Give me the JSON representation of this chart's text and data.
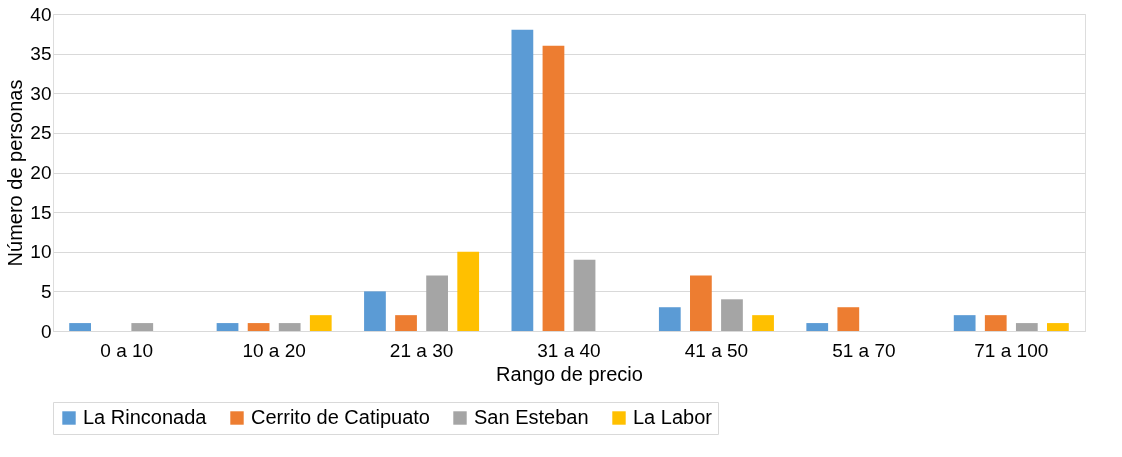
{
  "chart_data": {
    "type": "bar",
    "xlabel": "Rango de precio",
    "ylabel": "Número de personas",
    "categories": [
      "0 a 10",
      "10 a 20",
      "21 a 30",
      "31 a 40",
      "41 a 50",
      "51 a 70",
      "71 a 100"
    ],
    "series": [
      {
        "name": "La Rinconada",
        "color": "#5b9bd5",
        "values": [
          1,
          1,
          5,
          38,
          3,
          1,
          2
        ]
      },
      {
        "name": "Cerrito de Catipuato",
        "color": "#ed7d31",
        "values": [
          0,
          1,
          2,
          36,
          7,
          3,
          2
        ]
      },
      {
        "name": "San Esteban",
        "color": "#a5a5a5",
        "values": [
          1,
          1,
          7,
          9,
          4,
          0,
          1
        ]
      },
      {
        "name": "La Labor",
        "color": "#ffc000",
        "values": [
          0,
          2,
          10,
          0,
          2,
          0,
          1
        ]
      }
    ],
    "ylim": [
      0,
      40
    ],
    "yticks": [
      0,
      5,
      10,
      15,
      20,
      25,
      30,
      35,
      40
    ],
    "grid": "y",
    "legend": "bottom"
  }
}
